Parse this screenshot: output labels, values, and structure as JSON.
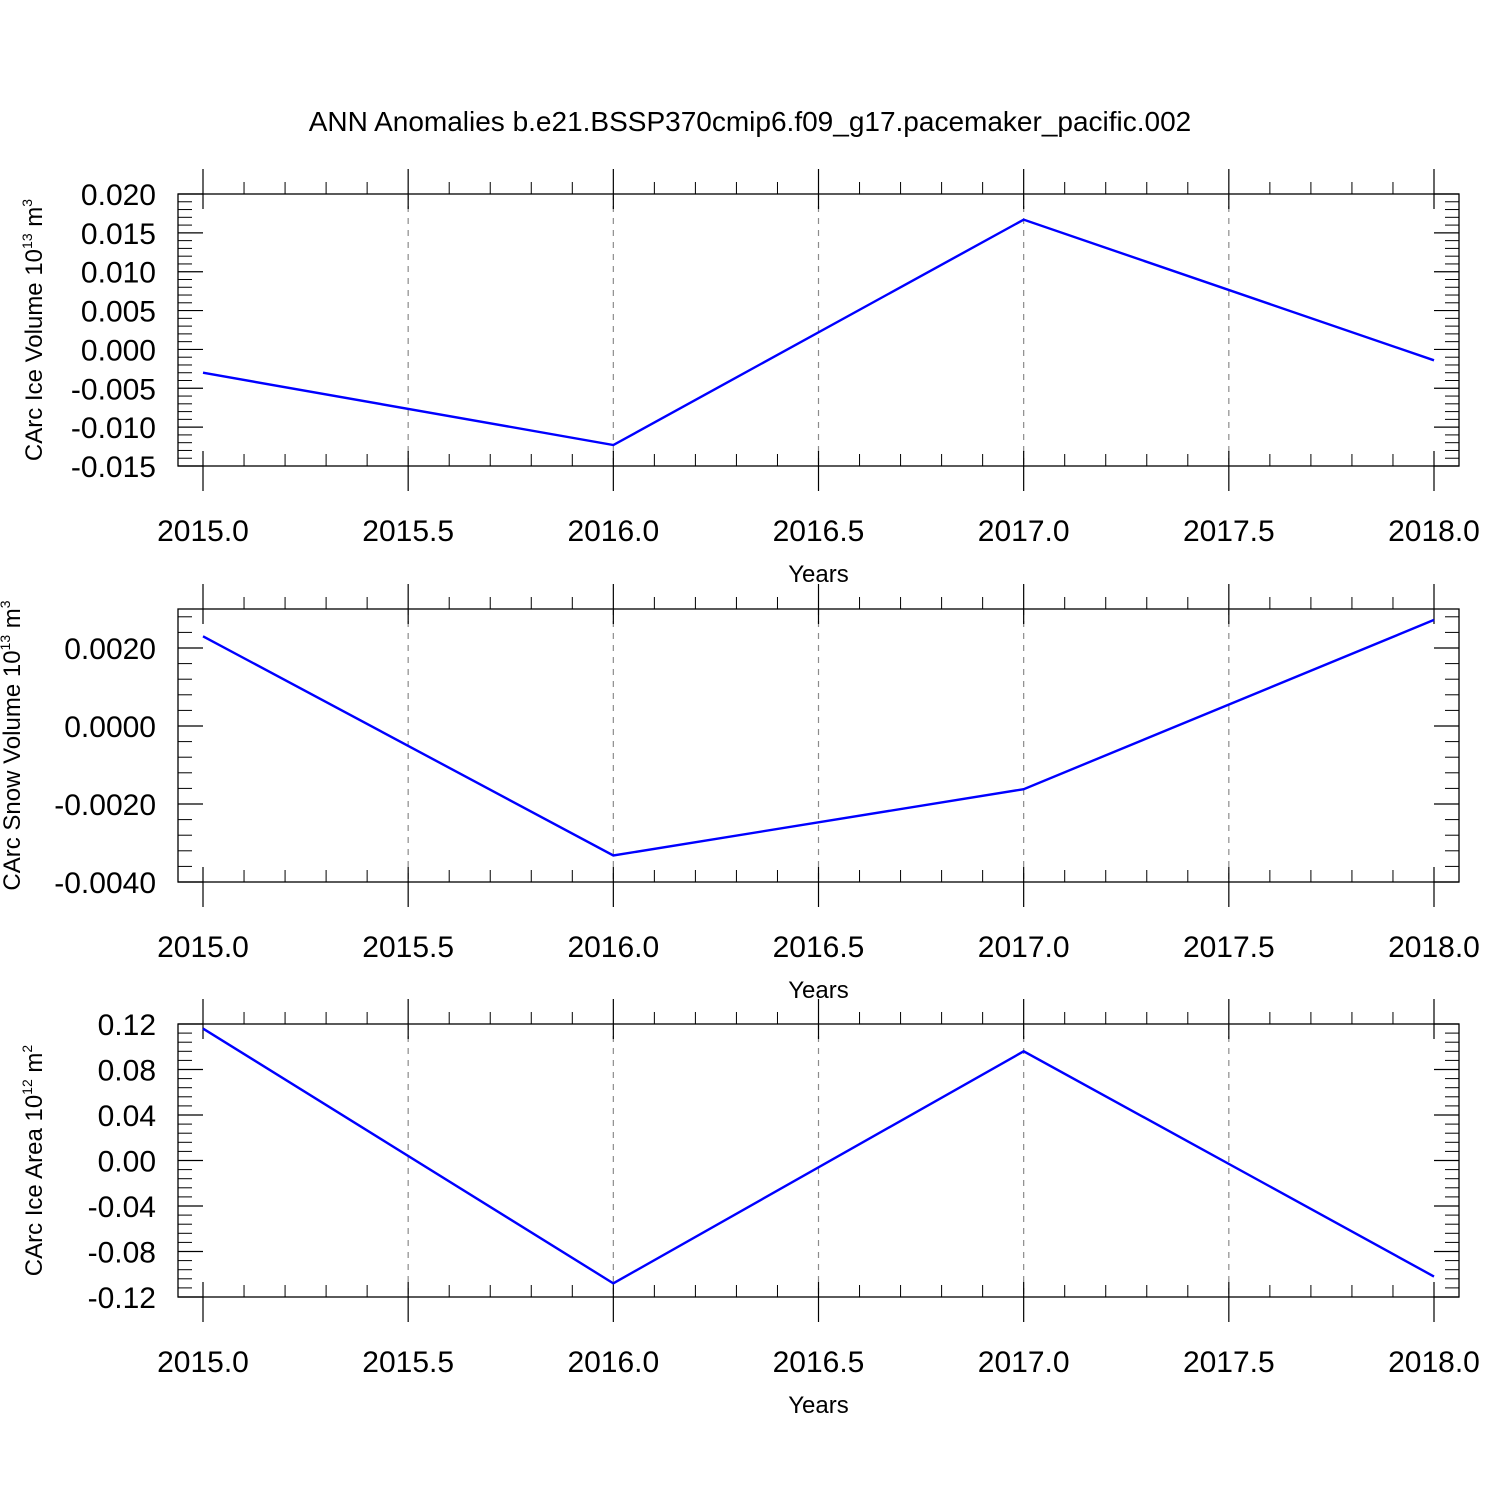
{
  "title": "ANN Anomalies b.e21.BSSP370cmip6.f09_g17.pacemaker_pacific.002",
  "colors": {
    "line": "#0000ff",
    "grid": "#8c8c8c",
    "axis": "#000000"
  },
  "chart_data": [
    {
      "type": "line",
      "xlabel": "Years",
      "ylabel": {
        "text": "CArc Ice Volume 10",
        "sup": "13",
        "unit": " m",
        "unit_sup": "3"
      },
      "x": [
        2015,
        2016,
        2017,
        2018
      ],
      "series": [
        {
          "values": [
            -0.003,
            -0.0123,
            0.0167,
            -0.0014
          ]
        }
      ],
      "xlim": [
        2015,
        2018
      ],
      "ylim": [
        -0.015,
        0.02
      ],
      "xticks": [
        2015.0,
        2015.5,
        2016.0,
        2016.5,
        2017.0,
        2017.5,
        2018.0
      ],
      "xtick_labels": [
        "2015.0",
        "2015.5",
        "2016.0",
        "2016.5",
        "2017.0",
        "2017.5",
        "2018.0"
      ],
      "yticks": [
        0.02,
        0.015,
        0.01,
        0.005,
        0.0,
        -0.005,
        -0.01,
        -0.015
      ],
      "ytick_labels": [
        "0.020",
        "0.015",
        "0.010",
        "0.005",
        "0.000",
        "-0.005",
        "-0.010",
        "-0.015"
      ],
      "y_minor_step": 0.001,
      "grid": "vertical dashed at major x ticks"
    },
    {
      "type": "line",
      "xlabel": "Years",
      "ylabel": {
        "text": "CArc Snow Volume 10",
        "sup": "13",
        "unit": " m",
        "unit_sup": "3"
      },
      "x": [
        2015,
        2016,
        2017,
        2018
      ],
      "series": [
        {
          "values": [
            0.0023,
            -0.00332,
            -0.00162,
            0.00272
          ]
        }
      ],
      "xlim": [
        2015,
        2018
      ],
      "ylim": [
        -0.004,
        0.003
      ],
      "xticks": [
        2015.0,
        2015.5,
        2016.0,
        2016.5,
        2017.0,
        2017.5,
        2018.0
      ],
      "xtick_labels": [
        "2015.0",
        "2015.5",
        "2016.0",
        "2016.5",
        "2017.0",
        "2017.5",
        "2018.0"
      ],
      "yticks": [
        0.002,
        0.0,
        -0.002,
        -0.004
      ],
      "ytick_labels": [
        "0.0020",
        "0.0000",
        "-0.0020",
        "-0.0040"
      ],
      "y_minor_step": 0.0004,
      "grid": "vertical dashed at major x ticks"
    },
    {
      "type": "line",
      "xlabel": "Years",
      "ylabel": {
        "text": "CArc Ice Area 10",
        "sup": "12",
        "unit": " m",
        "unit_sup": "2"
      },
      "x": [
        2015,
        2016,
        2017,
        2018
      ],
      "series": [
        {
          "values": [
            0.116,
            -0.108,
            0.096,
            -0.102
          ]
        }
      ],
      "xlim": [
        2015,
        2018
      ],
      "ylim": [
        -0.12,
        0.12
      ],
      "xticks": [
        2015.0,
        2015.5,
        2016.0,
        2016.5,
        2017.0,
        2017.5,
        2018.0
      ],
      "xtick_labels": [
        "2015.0",
        "2015.5",
        "2016.0",
        "2016.5",
        "2017.0",
        "2017.5",
        "2018.0"
      ],
      "yticks": [
        0.12,
        0.08,
        0.04,
        0.0,
        -0.04,
        -0.08,
        -0.12
      ],
      "ytick_labels": [
        "0.12",
        "0.08",
        "0.04",
        "0.00",
        "-0.04",
        "-0.08",
        "-0.12"
      ],
      "y_minor_step": 0.008,
      "grid": "vertical dashed at major x ticks"
    }
  ]
}
